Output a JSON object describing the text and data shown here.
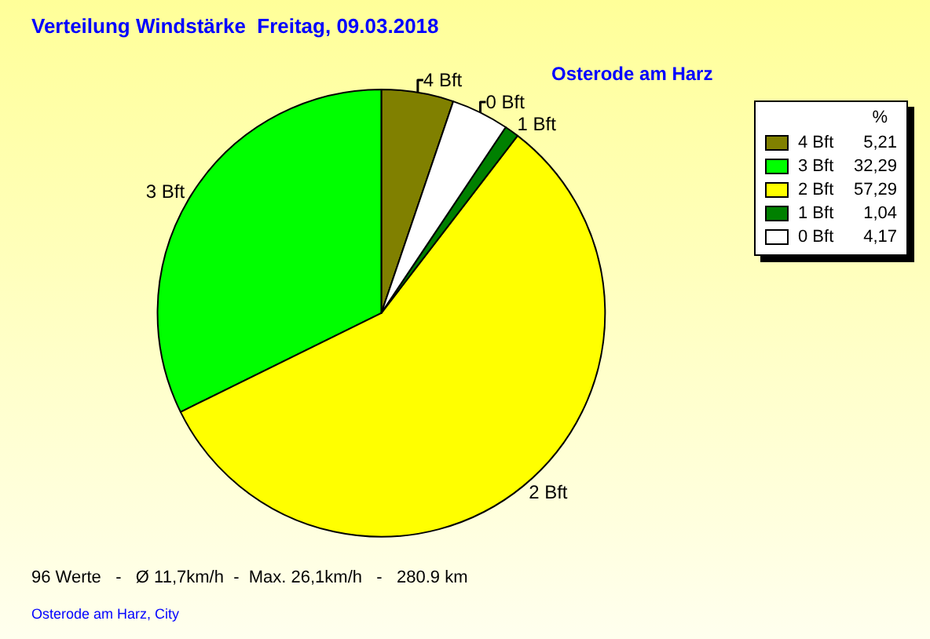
{
  "chart_data": {
    "type": "pie",
    "title": "Verteilung Windstärke  Freitag, 09.03.2018",
    "subtitle": "Osterode am Harz",
    "categories": [
      "4 Bft",
      "3 Bft",
      "2 Bft",
      "1 Bft",
      "0 Bft"
    ],
    "values": [
      5.21,
      32.29,
      57.29,
      1.04,
      4.17
    ],
    "value_labels": [
      "5,21",
      "32,29",
      "57,29",
      "1,04",
      "4,17"
    ],
    "colors": [
      "#808000",
      "#00ff00",
      "#ffff00",
      "#008000",
      "#ffffff"
    ],
    "legend": "top right",
    "legend_title": "%",
    "annotations": [
      "96 Werte   -   Ø 11,7km/h  -  Max. 26,1km/h   -   280.9 km",
      "Osterode am Harz, City"
    ]
  }
}
